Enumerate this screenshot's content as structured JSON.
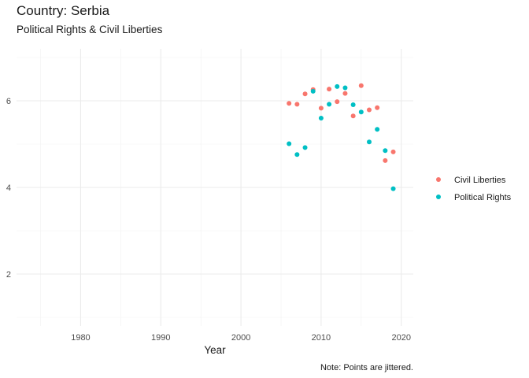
{
  "chart_data": {
    "type": "scatter",
    "title": "Country: Serbia",
    "subtitle": "Political Rights & Civil Liberties",
    "xlabel": "Year",
    "ylabel": "",
    "caption": "Note: Points are jittered.",
    "xlim": [
      1972,
      2021.5
    ],
    "ylim": [
      0.8,
      7.2
    ],
    "x_ticks": [
      1980,
      1990,
      2000,
      2010,
      2020
    ],
    "y_ticks": [
      2,
      4,
      6
    ],
    "grid": true,
    "legend_position": "right",
    "series": [
      {
        "name": "Civil Liberties",
        "color": "#F8766D",
        "points": [
          [
            2006,
            5.94
          ],
          [
            2007,
            5.92
          ],
          [
            2008,
            6.16
          ],
          [
            2009,
            6.26
          ],
          [
            2010,
            5.83
          ],
          [
            2011,
            6.27
          ],
          [
            2012,
            5.98
          ],
          [
            2013,
            6.17
          ],
          [
            2014,
            5.65
          ],
          [
            2015,
            6.35
          ],
          [
            2016,
            5.79
          ],
          [
            2017,
            5.84
          ],
          [
            2018,
            4.62
          ],
          [
            2019,
            4.82
          ]
        ]
      },
      {
        "name": "Political Rights",
        "color": "#00BFC4",
        "points": [
          [
            2006,
            5.01
          ],
          [
            2007,
            4.76
          ],
          [
            2008,
            4.92
          ],
          [
            2009,
            6.22
          ],
          [
            2010,
            5.6
          ],
          [
            2011,
            5.92
          ],
          [
            2012,
            6.33
          ],
          [
            2013,
            6.3
          ],
          [
            2014,
            5.91
          ],
          [
            2015,
            5.74
          ],
          [
            2016,
            5.05
          ],
          [
            2017,
            5.34
          ],
          [
            2018,
            4.85
          ],
          [
            2019,
            3.97
          ]
        ]
      }
    ]
  }
}
